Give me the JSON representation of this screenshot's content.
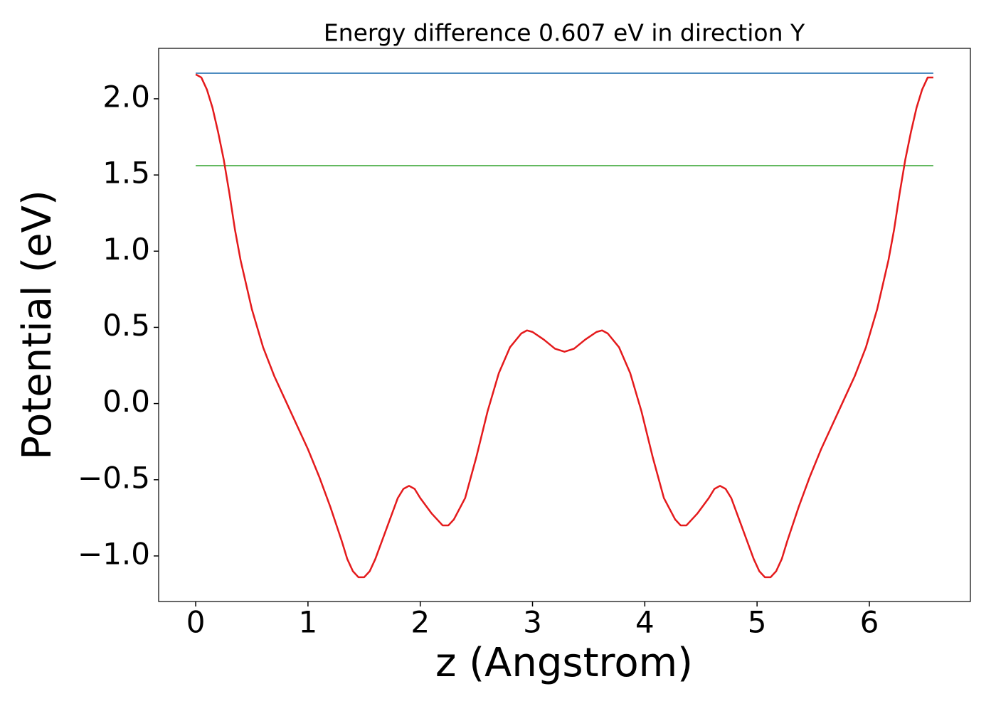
{
  "chart_data": {
    "type": "line",
    "title": "Energy difference 0.607 eV in direction Y",
    "xlabel": "z (Angstrom)",
    "ylabel": "Potential (eV)",
    "xlim": [
      -0.33,
      6.9
    ],
    "ylim": [
      -1.299,
      2.331
    ],
    "xticks": [
      0,
      1,
      2,
      3,
      4,
      5,
      6
    ],
    "yticks": [
      {
        "value": -1.0,
        "label": "−1.0"
      },
      {
        "value": -0.5,
        "label": "−0.5"
      },
      {
        "value": 0.0,
        "label": "0.0"
      },
      {
        "value": 0.5,
        "label": "0.5"
      },
      {
        "value": 1.0,
        "label": "1.0"
      },
      {
        "value": 1.5,
        "label": "1.5"
      },
      {
        "value": 2.0,
        "label": "2.0"
      }
    ],
    "grid": false,
    "series": [
      {
        "color": "#e41a1c",
        "x": [
          0,
          0.05,
          0.1,
          0.15,
          0.2,
          0.25,
          0.3,
          0.35,
          0.4,
          0.5,
          0.6,
          0.7,
          0.8,
          0.9,
          1.0,
          1.1,
          1.2,
          1.3,
          1.35,
          1.4,
          1.45,
          1.5,
          1.55,
          1.6,
          1.7,
          1.8,
          1.85,
          1.9,
          1.95,
          2.0,
          2.1,
          2.2,
          2.25,
          2.3,
          2.4,
          2.5,
          2.6,
          2.7,
          2.8,
          2.9,
          2.95,
          3.0,
          3.1,
          3.2,
          3.285,
          3.37,
          3.47,
          3.57,
          3.62,
          3.67,
          3.77,
          3.87,
          3.97,
          4.07,
          4.17,
          4.27,
          4.32,
          4.37,
          4.47,
          4.57,
          4.62,
          4.67,
          4.72,
          4.77,
          4.87,
          4.97,
          5.02,
          5.07,
          5.12,
          5.17,
          5.22,
          5.27,
          5.37,
          5.47,
          5.57,
          5.67,
          5.77,
          5.87,
          5.97,
          6.07,
          6.17,
          6.22,
          6.27,
          6.32,
          6.37,
          6.42,
          6.47,
          6.52,
          6.57
        ],
        "values": [
          2.16,
          2.14,
          2.06,
          1.94,
          1.78,
          1.6,
          1.38,
          1.14,
          0.94,
          0.62,
          0.37,
          0.18,
          0.02,
          -0.14,
          -0.3,
          -0.48,
          -0.68,
          -0.9,
          -1.02,
          -1.1,
          -1.14,
          -1.14,
          -1.1,
          -1.02,
          -0.82,
          -0.62,
          -0.56,
          -0.54,
          -0.56,
          -0.62,
          -0.72,
          -0.8,
          -0.8,
          -0.76,
          -0.62,
          -0.35,
          -0.05,
          0.2,
          0.37,
          0.46,
          0.48,
          0.47,
          0.42,
          0.36,
          0.34,
          0.36,
          0.42,
          0.47,
          0.48,
          0.46,
          0.37,
          0.2,
          -0.05,
          -0.35,
          -0.62,
          -0.76,
          -0.8,
          -0.8,
          -0.72,
          -0.62,
          -0.56,
          -0.54,
          -0.56,
          -0.62,
          -0.82,
          -1.02,
          -1.1,
          -1.14,
          -1.14,
          -1.1,
          -1.02,
          -0.9,
          -0.68,
          -0.48,
          -0.3,
          -0.14,
          0.02,
          0.18,
          0.37,
          0.62,
          0.94,
          1.14,
          1.38,
          1.6,
          1.78,
          1.94,
          2.06,
          2.14,
          2.14
        ]
      },
      {
        "color": "#377eb8",
        "x": [
          0,
          6.57
        ],
        "values": [
          2.168,
          2.168
        ]
      },
      {
        "color": "#4daf4a",
        "x": [
          0,
          6.57
        ],
        "values": [
          1.561,
          1.561
        ]
      }
    ]
  }
}
